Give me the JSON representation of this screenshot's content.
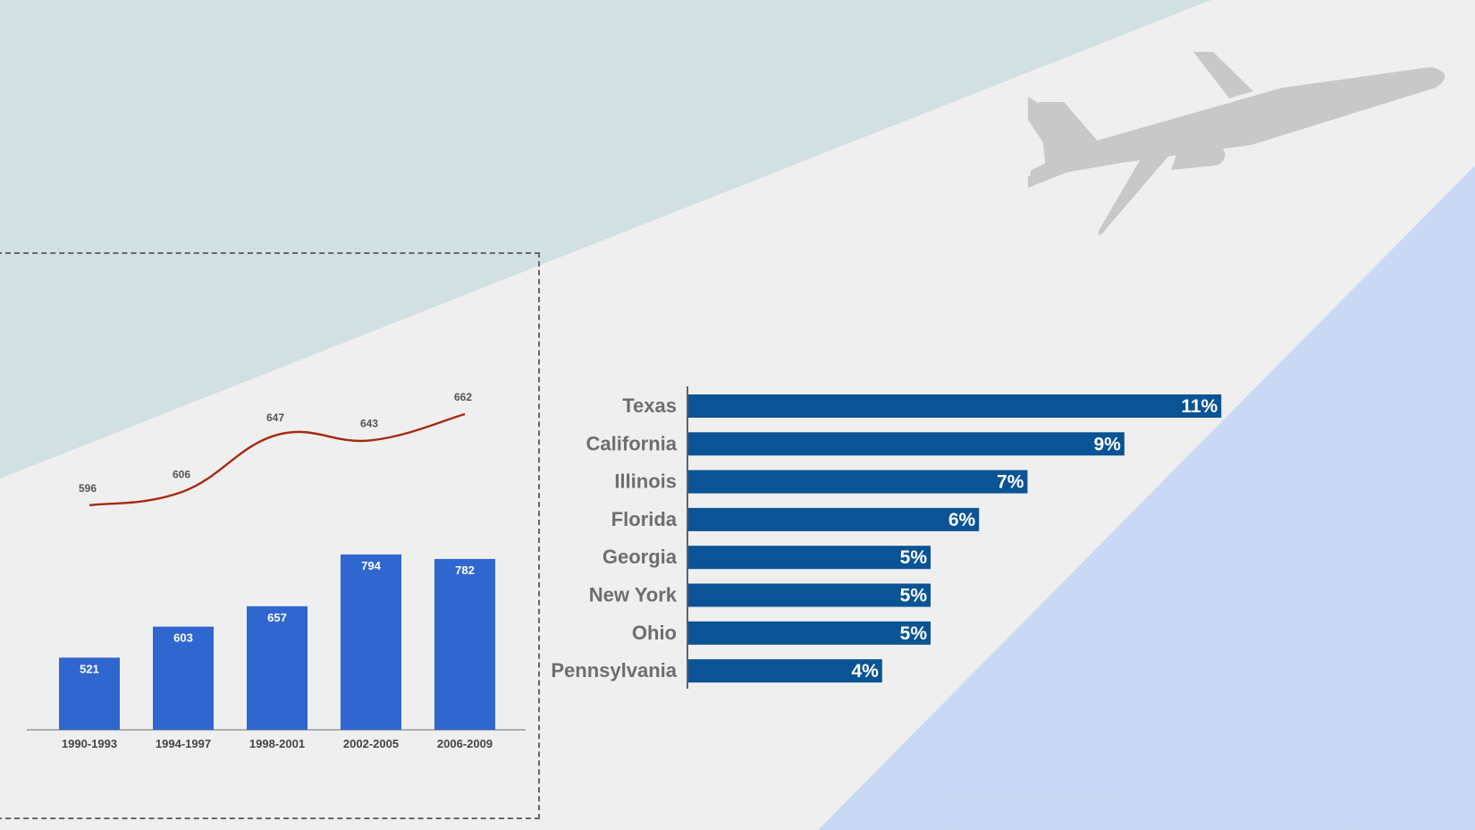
{
  "colors": {
    "background": "#efefef",
    "teal_band": "#d2e0e3",
    "blue_band": "#c9d9f5",
    "plane": "#c8c8c8",
    "column": "#3066cf",
    "line": "#a52a12",
    "hbar": "#0a5394",
    "category_label": "#6e6e6e"
  },
  "decor": {
    "icon": "airplane-icon"
  },
  "chart_data": [
    {
      "type": "bar",
      "categories": [
        "1990-1993",
        "1994-1997",
        "1998-2001",
        "2002-2005",
        "2006-2009"
      ],
      "series": [
        {
          "type": "bar",
          "values": [
            521,
            603,
            657,
            794,
            782
          ],
          "color": "#3066cf"
        },
        {
          "type": "line",
          "values": [
            596,
            606,
            647,
            643,
            662
          ],
          "color": "#a52a12"
        }
      ],
      "title": "",
      "xlabel": "",
      "ylabel": "",
      "grid": false,
      "legend": "none"
    },
    {
      "type": "bar",
      "orientation": "horizontal",
      "categories": [
        "Texas",
        "California",
        "Illinois",
        "Florida",
        "Georgia",
        "New York",
        "Ohio",
        "Pennsylvania"
      ],
      "values": [
        11,
        9,
        7,
        6,
        5,
        5,
        5,
        4
      ],
      "value_labels": [
        "11%",
        "9%",
        "7%",
        "6%",
        "5%",
        "5%",
        "5%",
        "4%"
      ],
      "title": "",
      "xlabel": "",
      "ylabel": "",
      "grid": false,
      "legend": "none"
    }
  ]
}
